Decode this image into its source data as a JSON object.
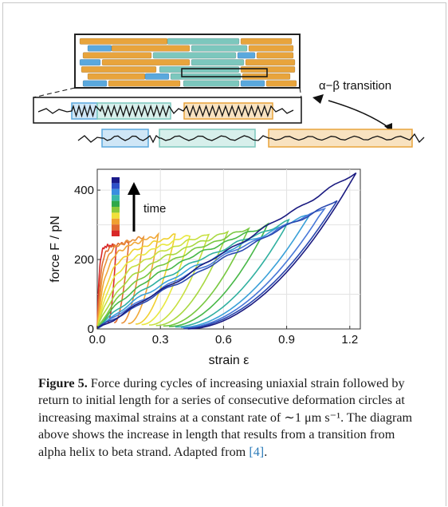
{
  "schematic": {
    "transition_label": "α−β transition",
    "colors": {
      "orange": "#e8a43c",
      "teal": "#7cc7bd",
      "blue": "#5aa8dd"
    }
  },
  "chart_data": {
    "type": "line",
    "xlabel": "strain  ε",
    "ylabel": "force  F / pN",
    "xlim": [
      0,
      1.25
    ],
    "ylim": [
      0,
      460
    ],
    "xticks": [
      "0.0",
      "0.3",
      "0.6",
      "0.9",
      "1.2"
    ],
    "yticks": [
      "0",
      "200",
      "400"
    ],
    "grid": true,
    "legend": {
      "type": "colorbar",
      "placement": "top-left",
      "label": "time",
      "colors": [
        "#1a1a8a",
        "#2e50c8",
        "#3a8ee0",
        "#3ab8a8",
        "#2ea84a",
        "#8ac83a",
        "#f0e03a",
        "#f0a030",
        "#e06a30",
        "#d82828"
      ]
    },
    "series": [
      {
        "color": "#d82828",
        "max_strain": 0.09,
        "peak": 240
      },
      {
        "color": "#e06a30",
        "max_strain": 0.15,
        "peak": 250
      },
      {
        "color": "#e89038",
        "max_strain": 0.22,
        "peak": 265
      },
      {
        "color": "#f0a838",
        "max_strain": 0.29,
        "peak": 270
      },
      {
        "color": "#f0d030",
        "max_strain": 0.37,
        "peak": 270
      },
      {
        "color": "#e8e840",
        "max_strain": 0.44,
        "peak": 270
      },
      {
        "color": "#c8e040",
        "max_strain": 0.53,
        "peak": 275
      },
      {
        "color": "#a8d840",
        "max_strain": 0.62,
        "peak": 280
      },
      {
        "color": "#78c840",
        "max_strain": 0.72,
        "peak": 290
      },
      {
        "color": "#48b848",
        "max_strain": 0.81,
        "peak": 300
      },
      {
        "color": "#30b0a0",
        "max_strain": 0.91,
        "peak": 310
      },
      {
        "color": "#3aa0d8",
        "max_strain": 1.01,
        "peak": 330
      },
      {
        "color": "#4878d8",
        "max_strain": 1.08,
        "peak": 350
      },
      {
        "color": "#2a48b0",
        "max_strain": 1.14,
        "peak": 370
      },
      {
        "color": "#1a1a80",
        "max_strain": 1.23,
        "peak": 450
      }
    ]
  },
  "caption": {
    "label": "Figure 5.",
    "text_before_ref": "Force during cycles of increasing uniaxial strain followed by return to initial length for a series of consecutive deformation circles at increasing maximal strains at a constant rate of ∼1 μm s⁻¹. The diagram above shows the increase in length that results from a transition from alpha helix to beta strand. Adapted from ",
    "ref": "[4]",
    "text_after_ref": "."
  }
}
